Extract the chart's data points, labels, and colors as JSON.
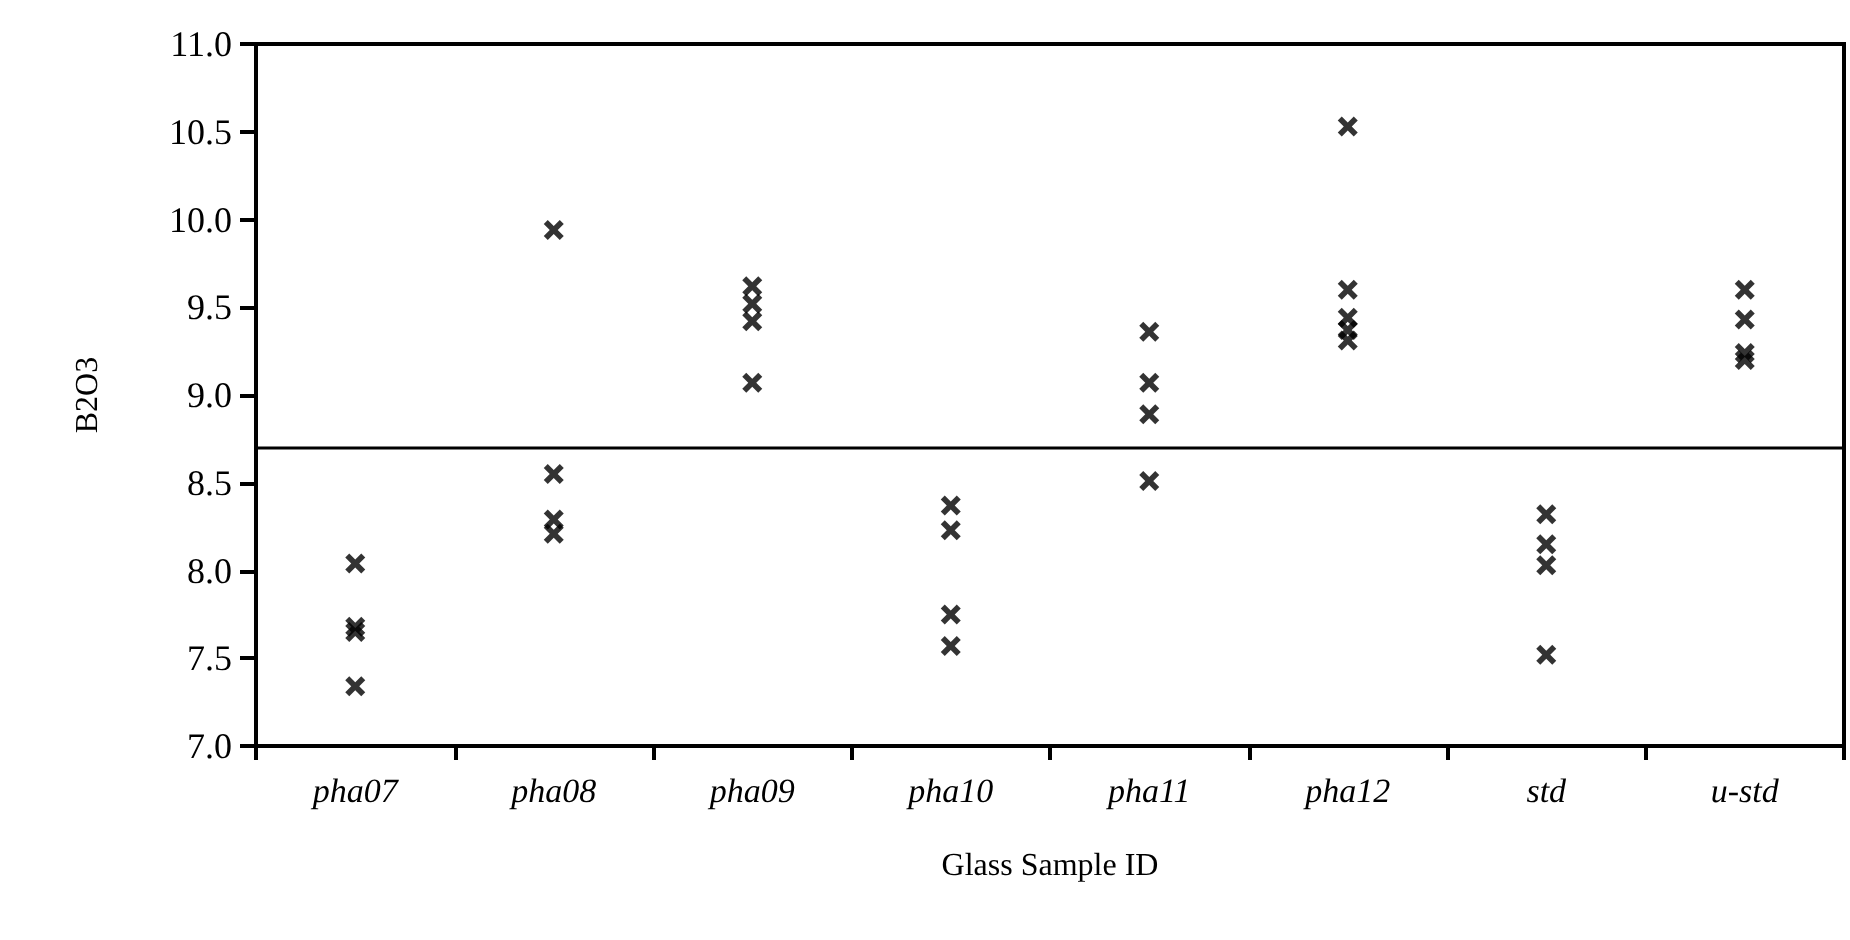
{
  "chart_data": {
    "type": "scatter",
    "xlabel": "Glass Sample ID",
    "ylabel": "B2O3",
    "categories": [
      "pha07",
      "pha08",
      "pha09",
      "pha10",
      "pha11",
      "pha12",
      "std",
      "u-std"
    ],
    "series": [
      {
        "color": "#000000",
        "x": [
          "pha07",
          "pha07",
          "pha07",
          "pha07",
          "pha08",
          "pha08",
          "pha08",
          "pha08",
          "pha09",
          "pha09",
          "pha09",
          "pha09",
          "pha10",
          "pha10",
          "pha10",
          "pha10",
          "pha11",
          "pha11",
          "pha11",
          "pha11",
          "pha12",
          "pha12",
          "pha12",
          "pha12",
          "pha12",
          "std",
          "std",
          "std",
          "std",
          "u-std",
          "u-std",
          "u-std",
          "u-std"
        ],
        "values": [
          8.04,
          7.68,
          7.65,
          7.34,
          9.94,
          8.55,
          8.29,
          8.21,
          9.62,
          9.52,
          9.42,
          9.07,
          8.37,
          8.23,
          7.75,
          7.57,
          9.36,
          9.07,
          8.89,
          8.51,
          10.53,
          9.6,
          9.44,
          9.37,
          9.31,
          8.32,
          8.15,
          8.03,
          7.52,
          9.6,
          9.43,
          9.24,
          9.2
        ]
      }
    ],
    "ylim": [
      7.0,
      11.0
    ],
    "yticks": [
      {
        "value": 7,
        "label": "7.0"
      },
      {
        "value": 7.5,
        "label": "7.5"
      },
      {
        "value": 8,
        "label": "8.0"
      },
      {
        "value": 8.5,
        "label": "8.5"
      },
      {
        "value": 9,
        "label": "9.0"
      },
      {
        "value": 9.5,
        "label": "9.5"
      },
      {
        "value": 10,
        "label": "10.0"
      },
      {
        "value": 10.5,
        "label": "10.5"
      },
      {
        "value": 11,
        "label": "11.0"
      }
    ],
    "ref_lines": [
      {
        "axis": "y",
        "value": 8.7,
        "color": "#000000",
        "line_style": "solid"
      }
    ],
    "marker": "cross"
  }
}
